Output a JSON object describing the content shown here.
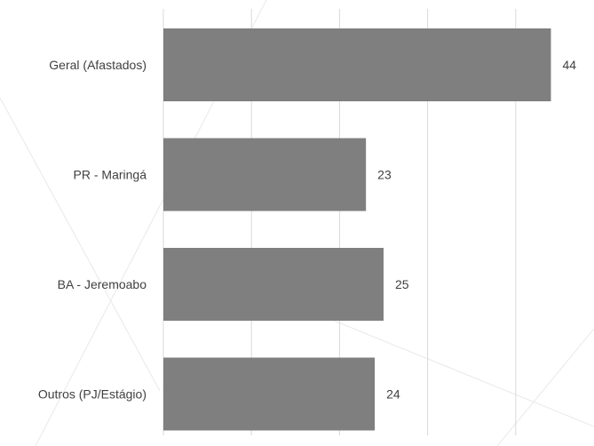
{
  "colors": {
    "bar": "#7f7f7f",
    "grid": "#d9d9d9",
    "text": "#404040",
    "background": "#ffffff"
  },
  "chart_data": {
    "type": "bar",
    "orientation": "horizontal",
    "categories": [
      "Geral (Afastados)",
      "PR - Maringá",
      "BA - Jeremoabo",
      "Outros (PJ/Estágio)"
    ],
    "values": [
      44,
      23,
      25,
      24
    ],
    "value_labels": [
      "44",
      "23",
      "25",
      "24"
    ],
    "xlim": [
      0,
      50
    ],
    "grid": true,
    "x_tick_labels_shown": false,
    "legend": "none"
  }
}
